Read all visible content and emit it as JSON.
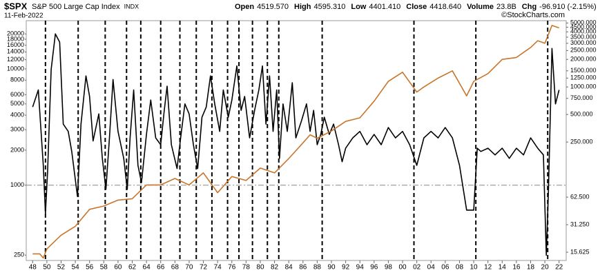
{
  "chart_data": {
    "type": "line",
    "symbol": "$SPX",
    "name": "S&P 500 Large Cap Index",
    "exchange": "INDX",
    "date": "11-Feb-2022",
    "quote": [
      {
        "label": "Open",
        "value": "4519.570"
      },
      {
        "label": "High",
        "value": "4595.310"
      },
      {
        "label": "Low",
        "value": "4401.410"
      },
      {
        "label": "Close",
        "value": "4418.640"
      },
      {
        "label": "Volume",
        "value": "23.8B"
      },
      {
        "label": "Chg",
        "value": "-96.910 (-2.15%)"
      }
    ],
    "credit": "©StockCharts.com",
    "log_scale": true,
    "xlim": [
      1947.1,
      2023
    ],
    "xticks": [
      {
        "value": 1948,
        "label": "48"
      },
      {
        "value": 1950,
        "label": "50"
      },
      {
        "value": 1952,
        "label": "52"
      },
      {
        "value": 1954,
        "label": "54"
      },
      {
        "value": 1956,
        "label": "56"
      },
      {
        "value": 1958,
        "label": "58"
      },
      {
        "value": 1960,
        "label": "60"
      },
      {
        "value": 1962,
        "label": "62"
      },
      {
        "value": 1964,
        "label": "64"
      },
      {
        "value": 1966,
        "label": "66"
      },
      {
        "value": 1968,
        "label": "68"
      },
      {
        "value": 1970,
        "label": "70"
      },
      {
        "value": 1972,
        "label": "72"
      },
      {
        "value": 1974,
        "label": "74"
      },
      {
        "value": 1976,
        "label": "76"
      },
      {
        "value": 1978,
        "label": "78"
      },
      {
        "value": 1980,
        "label": "80"
      },
      {
        "value": 1982,
        "label": "82"
      },
      {
        "value": 1984,
        "label": "84"
      },
      {
        "value": 1986,
        "label": "86"
      },
      {
        "value": 1988,
        "label": "88"
      },
      {
        "value": 1990,
        "label": "90"
      },
      {
        "value": 1992,
        "label": "92"
      },
      {
        "value": 1994,
        "label": "94"
      },
      {
        "value": 1996,
        "label": "96"
      },
      {
        "value": 1998,
        "label": "98"
      },
      {
        "value": 2000,
        "label": "00"
      },
      {
        "value": 2002,
        "label": "02"
      },
      {
        "value": 2004,
        "label": "04"
      },
      {
        "value": 2006,
        "label": "06"
      },
      {
        "value": 2008,
        "label": "08"
      },
      {
        "value": 2010,
        "label": "10"
      },
      {
        "value": 2012,
        "label": "12"
      },
      {
        "value": 2014,
        "label": "14"
      },
      {
        "value": 2016,
        "label": "16"
      },
      {
        "value": 2018,
        "label": "18"
      },
      {
        "value": 2020,
        "label": "20"
      },
      {
        "value": 2022,
        "label": "22"
      }
    ],
    "ylim": [
      225,
      26000
    ],
    "yticks": [
      250,
      1000,
      2000,
      3000,
      4000,
      5000,
      6000,
      8000,
      10000,
      12000,
      14000,
      16000,
      18000,
      20000
    ],
    "y2lim": [
      12.7,
      5300
    ],
    "y2ticks": [
      {
        "value": 15.625,
        "label": "15.625"
      },
      {
        "value": 31.25,
        "label": "31.250"
      },
      {
        "value": 62.5,
        "label": "62.500"
      },
      {
        "value": 250,
        "label": "250.000"
      },
      {
        "value": 500,
        "label": "500.000"
      },
      {
        "value": 750,
        "label": "750.000"
      },
      {
        "value": 1000,
        "label": "1000.000"
      },
      {
        "value": 1250,
        "label": "1250.000"
      },
      {
        "value": 1500,
        "label": "1500.000"
      },
      {
        "value": 2000,
        "label": "2000.000"
      },
      {
        "value": 2500,
        "label": "2500.000"
      },
      {
        "value": 3000,
        "label": "3000.000"
      },
      {
        "value": 3500,
        "label": "3500.000"
      },
      {
        "value": 4000,
        "label": "4000.000"
      },
      {
        "value": 4500,
        "label": "4500.000"
      },
      {
        "value": 5000,
        "label": "5000.000"
      }
    ],
    "reference_line": 1000,
    "event_lines": [
      1949.8,
      1954.4,
      1958.2,
      1961.2,
      1963.2,
      1966.0,
      1968.7,
      1971.0,
      1973.2,
      1975.4,
      1977.0,
      1978.9,
      1981.0,
      1982.6,
      1988.7,
      2001.6,
      2010.3,
      2020.4
    ],
    "series": [
      {
        "color": "#000000",
        "x": [
          1948,
          1948.8,
          1949.5,
          1949.8,
          1950.1,
          1950.6,
          1951.2,
          1951.8,
          1952.3,
          1953,
          1953.5,
          1954.3,
          1954.8,
          1955.5,
          1956,
          1956.5,
          1957.3,
          1957.8,
          1958.3,
          1958.8,
          1959.3,
          1960,
          1960.8,
          1961.3,
          1961.7,
          1962.2,
          1962.8,
          1963.3,
          1964,
          1964.6,
          1965.3,
          1966,
          1966.5,
          1966.9,
          1967.5,
          1968.3,
          1968.8,
          1969.4,
          1970,
          1970.6,
          1971.2,
          1971.8,
          1972.4,
          1973,
          1973.6,
          1974.3,
          1974.8,
          1975.5,
          1976,
          1976.7,
          1977.3,
          1977.8,
          1978.5,
          1979.2,
          1979.8,
          1980.3,
          1980.8,
          1981.3,
          1981.8,
          1982.3,
          1982.7,
          1983.2,
          1983.8,
          1984.5,
          1985,
          1985.8,
          1986.5,
          1987,
          1987.5,
          1988,
          1988.5,
          1989,
          1989.7,
          1990.3,
          1991,
          1991.5,
          1992,
          1993,
          1994,
          1995,
          1996,
          1997,
          1998,
          1999,
          2000,
          2001,
          2002,
          2003,
          2004,
          2005,
          2006,
          2007,
          2008,
          2009,
          2010,
          2010.5,
          2011,
          2012,
          2013,
          2014,
          2015,
          2016,
          2017,
          2018,
          2019,
          2019.8,
          2020.2,
          2020.5,
          2021,
          2021.5,
          2022
        ],
        "values": [
          4700,
          6600,
          1480,
          570,
          1300,
          9900,
          20000,
          17000,
          3350,
          2900,
          1950,
          800,
          3350,
          8700,
          5800,
          2400,
          4100,
          1700,
          920,
          2550,
          8100,
          2900,
          1700,
          920,
          2550,
          6600,
          1480,
          1050,
          2730,
          5400,
          2550,
          2230,
          4400,
          7100,
          2230,
          1390,
          2550,
          5000,
          4100,
          2230,
          1390,
          3840,
          4700,
          8700,
          5000,
          2900,
          6600,
          3840,
          5400,
          10600,
          4400,
          5800,
          2550,
          4400,
          6600,
          10600,
          3350,
          8700,
          2900,
          6600,
          1700,
          5000,
          2900,
          7600,
          2550,
          3590,
          5000,
          2900,
          4400,
          2230,
          2730,
          3840,
          2730,
          3350,
          2230,
          1590,
          2080,
          2550,
          2900,
          2230,
          2730,
          2230,
          3130,
          2550,
          2900,
          2230,
          1480,
          2550,
          2900,
          2550,
          3130,
          2550,
          1480,
          610,
          610,
          2080,
          1950,
          2080,
          1820,
          2080,
          1700,
          2080,
          1820,
          2550,
          2080,
          1820,
          250,
          860,
          15000,
          5000,
          6600
        ]
      },
      {
        "color": "#c8742a",
        "axis": "y2",
        "x": [
          1948,
          1949,
          1949.5,
          1950,
          1952,
          1954,
          1956,
          1958,
          1960,
          1962,
          1964,
          1966,
          1968,
          1970,
          1972,
          1974,
          1976,
          1978,
          1980,
          1982,
          1984,
          1986,
          1987,
          1988,
          1990,
          1992,
          1994,
          1996,
          1998,
          2000,
          2002,
          2003,
          2005,
          2007,
          2009,
          2010,
          2012,
          2014,
          2016,
          2018,
          2019,
          2020,
          2021,
          2022
        ],
        "values": [
          15,
          15,
          13.5,
          17,
          24,
          30,
          46,
          50,
          58,
          60,
          85,
          85,
          100,
          85,
          115,
          70,
          105,
          95,
          130,
          115,
          165,
          245,
          300,
          275,
          330,
          420,
          460,
          700,
          1150,
          1450,
          880,
          1000,
          1250,
          1500,
          800,
          1150,
          1400,
          2000,
          2100,
          2700,
          3200,
          3000,
          4700,
          4418
        ]
      }
    ]
  }
}
